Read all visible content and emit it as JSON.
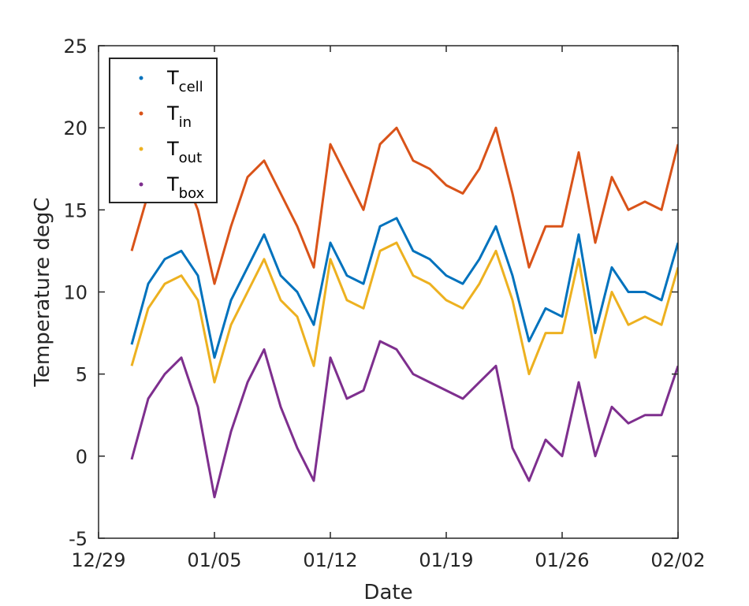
{
  "chart_data": {
    "type": "line",
    "xlabel": "Date",
    "ylabel": "Temperature degC",
    "ylim": [
      -5,
      25
    ],
    "yticks": [
      -5,
      0,
      5,
      10,
      15,
      20,
      25
    ],
    "xlim": [
      "12/29",
      "02/02"
    ],
    "xtick_labels": [
      "12/29",
      "01/05",
      "01/12",
      "01/19",
      "01/26",
      "02/02"
    ],
    "grid": false,
    "legend_placement": "top-left",
    "x": [
      "12/31",
      "01/01",
      "01/02",
      "01/03",
      "01/04",
      "01/05",
      "01/06",
      "01/07",
      "01/08",
      "01/09",
      "01/10",
      "01/11",
      "01/12",
      "01/13",
      "01/14",
      "01/15",
      "01/16",
      "01/17",
      "01/18",
      "01/19",
      "01/20",
      "01/21",
      "01/22",
      "01/23",
      "01/24",
      "01/25",
      "01/26",
      "01/27",
      "01/28",
      "01/29",
      "01/30",
      "01/31",
      "02/01",
      "02/02"
    ],
    "series": [
      {
        "name": "T",
        "subscript": "cell",
        "color": "#0072BD",
        "values": [
          6.8,
          10.5,
          12.0,
          12.5,
          11.0,
          6.0,
          9.5,
          11.5,
          13.5,
          11.0,
          10.0,
          8.0,
          13.0,
          11.0,
          10.5,
          14.0,
          14.5,
          12.5,
          12.0,
          11.0,
          10.5,
          12.0,
          14.0,
          11.0,
          7.0,
          9.0,
          8.5,
          13.5,
          7.5,
          11.5,
          10.0,
          10.0,
          9.5,
          13.0
        ]
      },
      {
        "name": "T",
        "subscript": "in",
        "color": "#D95319",
        "values": [
          12.5,
          16.0,
          17.0,
          17.5,
          15.0,
          10.5,
          14.0,
          17.0,
          18.0,
          16.0,
          14.0,
          11.5,
          19.0,
          17.0,
          15.0,
          19.0,
          20.0,
          18.0,
          17.5,
          16.5,
          16.0,
          17.5,
          20.0,
          16.0,
          11.5,
          14.0,
          14.0,
          18.5,
          13.0,
          17.0,
          15.0,
          15.5,
          15.0,
          19.0
        ]
      },
      {
        "name": "T",
        "subscript": "out",
        "color": "#EDB120",
        "values": [
          5.5,
          9.0,
          10.5,
          11.0,
          9.5,
          4.5,
          8.0,
          10.0,
          12.0,
          9.5,
          8.5,
          5.5,
          12.0,
          9.5,
          9.0,
          12.5,
          13.0,
          11.0,
          10.5,
          9.5,
          9.0,
          10.5,
          12.5,
          9.5,
          5.0,
          7.5,
          7.5,
          12.0,
          6.0,
          10.0,
          8.0,
          8.5,
          8.0,
          11.5
        ]
      },
      {
        "name": "T",
        "subscript": "box",
        "color": "#7E2F8E",
        "values": [
          -0.2,
          3.5,
          5.0,
          6.0,
          3.0,
          -2.5,
          1.5,
          4.5,
          6.5,
          3.0,
          0.5,
          -1.5,
          6.0,
          3.5,
          4.0,
          7.0,
          6.5,
          5.0,
          4.5,
          4.0,
          3.5,
          4.5,
          5.5,
          0.5,
          -1.5,
          1.0,
          0.0,
          4.5,
          0.0,
          3.0,
          2.0,
          2.5,
          2.5,
          5.5
        ]
      }
    ]
  }
}
